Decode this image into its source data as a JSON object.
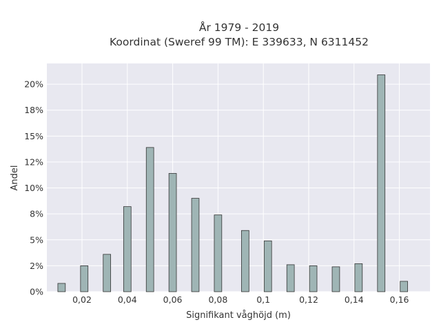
{
  "chart_data": {
    "type": "bar",
    "title_line1": "År 1979 - 2019",
    "title_line2": "Koordinat (Sweref 99 TM): E 339633, N 6311452",
    "xlabel": "Signifikant våghöjd (m)",
    "ylabel": "Andel",
    "x_ticks": [
      {
        "value": 0.02,
        "label": "0,02"
      },
      {
        "value": 0.04,
        "label": "0,04"
      },
      {
        "value": 0.06,
        "label": "0,06"
      },
      {
        "value": 0.08,
        "label": "0,08"
      },
      {
        "value": 0.1,
        "label": "0,1"
      },
      {
        "value": 0.12,
        "label": "0,12"
      },
      {
        "value": 0.14,
        "label": "0,14"
      },
      {
        "value": 0.16,
        "label": "0,16"
      }
    ],
    "y_ticks": [
      {
        "value": 0,
        "label": "0%"
      },
      {
        "value": 2.5,
        "label": "2%"
      },
      {
        "value": 5,
        "label": "5%"
      },
      {
        "value": 7.5,
        "label": "8%"
      },
      {
        "value": 10,
        "label": "10%"
      },
      {
        "value": 12.5,
        "label": "12%"
      },
      {
        "value": 15,
        "label": "15%"
      },
      {
        "value": 17.5,
        "label": "18%"
      },
      {
        "value": 20,
        "label": "20%"
      }
    ],
    "xlim": [
      0.0045,
      0.1735
    ],
    "ylim": [
      0,
      22
    ],
    "bar_width": 0.0033,
    "grid": true,
    "bar_color": "#9fb5b5",
    "bar_edge_color": "#333333",
    "plot_bg": "#e8e8f0",
    "x": [
      0.011,
      0.021,
      0.031,
      0.04,
      0.05,
      0.06,
      0.07,
      0.08,
      0.092,
      0.102,
      0.112,
      0.122,
      0.132,
      0.142,
      0.152,
      0.162
    ],
    "values": [
      0.8,
      2.5,
      3.6,
      8.2,
      13.9,
      11.4,
      9.0,
      7.4,
      5.9,
      4.9,
      2.6,
      2.5,
      2.4,
      2.7,
      20.9,
      1.0
    ]
  }
}
